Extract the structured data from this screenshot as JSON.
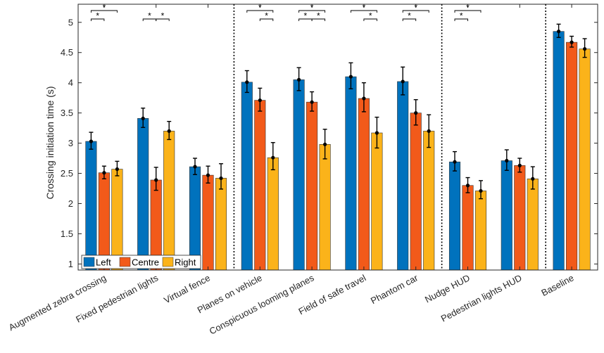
{
  "chart_data": {
    "type": "bar",
    "title": "",
    "xlabel": "",
    "ylabel": "Crossing initiation time (s)",
    "ylim": [
      0.9,
      5.3
    ],
    "yticks": [
      1,
      1.5,
      2,
      2.5,
      3,
      3.5,
      4,
      4.5,
      5
    ],
    "ytick_labels": [
      "1",
      "1.5",
      "2",
      "2.5",
      "3",
      "3.5",
      "4",
      "4.5",
      "5"
    ],
    "legend_position": "bottom-left",
    "categories": [
      "Augmented zebra crossing",
      "Fixed pedestrian lights",
      "Virtual fence",
      "Planes on vehicle",
      "Conspicuous looming planes",
      "Field of safe travel",
      "Phantom car",
      "Nudge HUD",
      "Pedestrian lights HUD",
      "Baseline"
    ],
    "series": [
      {
        "name": "Left",
        "color": "#0072BD",
        "values": [
          3.03,
          3.41,
          2.61,
          4.01,
          4.05,
          4.1,
          4.02,
          2.69,
          2.71,
          4.85
        ],
        "err_low": [
          0.13,
          0.15,
          0.13,
          0.17,
          0.18,
          0.2,
          0.22,
          0.15,
          0.16,
          0.1
        ],
        "err_high": [
          0.15,
          0.17,
          0.14,
          0.19,
          0.2,
          0.23,
          0.24,
          0.17,
          0.18,
          0.12
        ]
      },
      {
        "name": "Centre",
        "color": "#F25A1A",
        "values": [
          2.51,
          2.39,
          2.47,
          3.71,
          3.68,
          3.74,
          3.5,
          2.3,
          2.63,
          4.67
        ],
        "err_low": [
          0.1,
          0.17,
          0.13,
          0.18,
          0.15,
          0.22,
          0.2,
          0.12,
          0.11,
          0.08
        ],
        "err_high": [
          0.11,
          0.21,
          0.15,
          0.2,
          0.17,
          0.26,
          0.22,
          0.13,
          0.12,
          0.1
        ]
      },
      {
        "name": "Right",
        "color": "#FBB31A",
        "values": [
          2.57,
          3.2,
          2.42,
          2.76,
          2.98,
          3.17,
          3.2,
          2.21,
          2.41,
          4.56
        ],
        "err_low": [
          0.11,
          0.14,
          0.18,
          0.2,
          0.24,
          0.25,
          0.27,
          0.13,
          0.17,
          0.14
        ],
        "err_high": [
          0.13,
          0.16,
          0.24,
          0.25,
          0.25,
          0.26,
          0.27,
          0.17,
          0.2,
          0.17
        ]
      }
    ],
    "separators_after_category": [
      2,
      6,
      8
    ],
    "significance": [
      {
        "category": 0,
        "from": "Left",
        "to": "Centre",
        "label": "*",
        "level": 1
      },
      {
        "category": 0,
        "from": "Left",
        "to": "Right",
        "label": "*",
        "level": 2
      },
      {
        "category": 1,
        "from": "Left",
        "to": "Centre",
        "label": "*",
        "level": 1
      },
      {
        "category": 1,
        "from": "Centre",
        "to": "Right",
        "label": "*",
        "level": 1
      },
      {
        "category": 3,
        "from": "Left",
        "to": "Right",
        "label": "*",
        "level": 2
      },
      {
        "category": 3,
        "from": "Centre",
        "to": "Right",
        "label": "*",
        "level": 1
      },
      {
        "category": 4,
        "from": "Left",
        "to": "Centre",
        "label": "*",
        "level": 1
      },
      {
        "category": 4,
        "from": "Centre",
        "to": "Right",
        "label": "*",
        "level": 1
      },
      {
        "category": 4,
        "from": "Left",
        "to": "Right",
        "label": "*",
        "level": 2
      },
      {
        "category": 5,
        "from": "Left",
        "to": "Right",
        "label": "*",
        "level": 2
      },
      {
        "category": 5,
        "from": "Centre",
        "to": "Right",
        "label": "*",
        "level": 1
      },
      {
        "category": 6,
        "from": "Left",
        "to": "Centre",
        "label": "*",
        "level": 1
      },
      {
        "category": 6,
        "from": "Left",
        "to": "Right",
        "label": "*",
        "level": 2
      },
      {
        "category": 7,
        "from": "Left",
        "to": "Centre",
        "label": "*",
        "level": 1
      },
      {
        "category": 7,
        "from": "Left",
        "to": "Right",
        "label": "*",
        "level": 2
      }
    ]
  }
}
